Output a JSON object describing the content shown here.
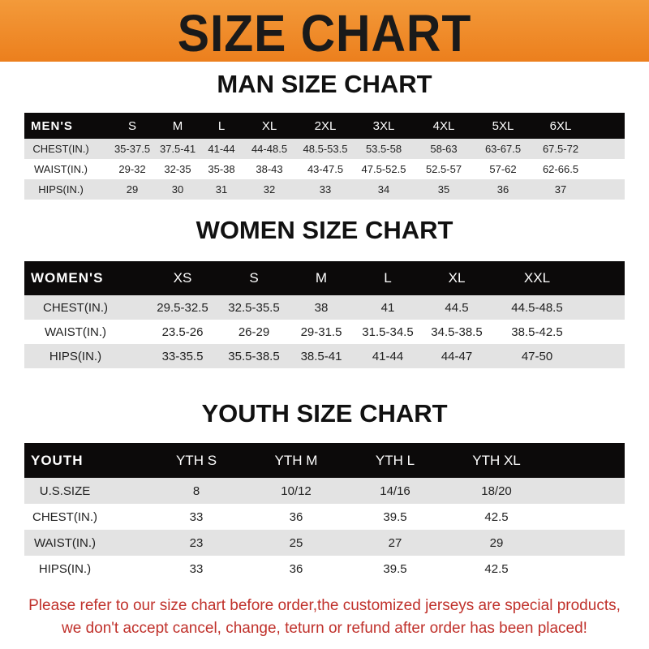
{
  "banner": {
    "title": "SIZE CHART",
    "color": "#ee8526"
  },
  "men": {
    "title": "MAN SIZE CHART",
    "header": [
      "MEN'S",
      "S",
      "M",
      "L",
      "XL",
      "2XL",
      "3XL",
      "4XL",
      "5XL",
      "6XL"
    ],
    "rows": [
      [
        "CHEST(IN.)",
        "35-37.5",
        "37.5-41",
        "41-44",
        "44-48.5",
        "48.5-53.5",
        "53.5-58",
        "58-63",
        "63-67.5",
        "67.5-72"
      ],
      [
        "WAIST(IN.)",
        "29-32",
        "32-35",
        "35-38",
        "38-43",
        "43-47.5",
        "47.5-52.5",
        "52.5-57",
        "57-62",
        "62-66.5"
      ],
      [
        "HIPS(IN.)",
        "29",
        "30",
        "31",
        "32",
        "33",
        "34",
        "35",
        "36",
        "37"
      ]
    ]
  },
  "women": {
    "title": "WOMEN SIZE CHART",
    "header": [
      "WOMEN'S",
      "XS",
      "S",
      "M",
      "L",
      "XL",
      "XXL"
    ],
    "rows": [
      [
        "CHEST(IN.)",
        "29.5-32.5",
        "32.5-35.5",
        "38",
        "41",
        "44.5",
        "44.5-48.5"
      ],
      [
        "WAIST(IN.)",
        "23.5-26",
        "26-29",
        "29-31.5",
        "31.5-34.5",
        "34.5-38.5",
        "38.5-42.5"
      ],
      [
        "HIPS(IN.)",
        "33-35.5",
        "35.5-38.5",
        "38.5-41",
        "41-44",
        "44-47",
        "47-50"
      ]
    ]
  },
  "youth": {
    "title": "YOUTH SIZE CHART",
    "header": [
      "YOUTH",
      "YTH S",
      "YTH M",
      "YTH L",
      "YTH XL"
    ],
    "rows": [
      [
        "U.S.SIZE",
        "8",
        "10/12",
        "14/16",
        "18/20"
      ],
      [
        "CHEST(IN.)",
        "33",
        "36",
        "39.5",
        "42.5"
      ],
      [
        "WAIST(IN.)",
        "23",
        "25",
        "27",
        "29"
      ],
      [
        "HIPS(IN.)",
        "33",
        "36",
        "39.5",
        "42.5"
      ]
    ]
  },
  "footer": {
    "line1": "Please refer to our size chart before order,the customized jerseys are special products,",
    "line2": "we don't accept cancel, change, teturn or refund after order has been placed!",
    "color": "#c0312b"
  }
}
